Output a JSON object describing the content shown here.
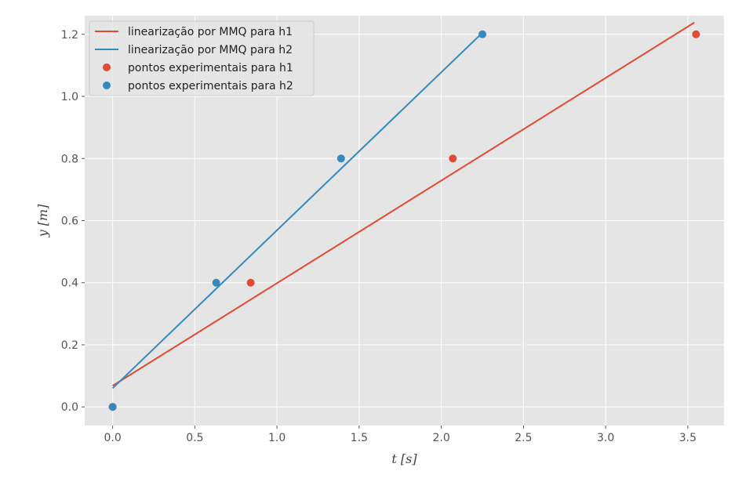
{
  "chart_data": {
    "type": "line",
    "title": "",
    "xlabel": "t [s]",
    "ylabel": "y [m]",
    "xlim": [
      -0.17,
      3.72
    ],
    "ylim": [
      -0.06,
      1.26
    ],
    "x_ticks": [
      "0.0",
      "0.5",
      "1.0",
      "1.5",
      "2.0",
      "2.5",
      "3.0",
      "3.5"
    ],
    "y_ticks": [
      "0.0",
      "0.2",
      "0.4",
      "0.6",
      "0.8",
      "1.0",
      "1.2"
    ],
    "grid": true,
    "legend_position": "top-left",
    "series": [
      {
        "name": "linearização por MMQ para h1",
        "kind": "line",
        "color": "#E24A33",
        "x": [
          0.0,
          3.54
        ],
        "y": [
          0.068,
          1.238
        ]
      },
      {
        "name": "linearização por MMQ para h2",
        "kind": "line",
        "color": "#348ABD",
        "x": [
          0.0,
          2.25
        ],
        "y": [
          0.06,
          1.205
        ]
      },
      {
        "name": "pontos experimentais para h1",
        "kind": "scatter",
        "color": "#E24A33",
        "x": [
          0.0,
          0.84,
          2.07,
          3.55
        ],
        "y": [
          0.0,
          0.4,
          0.8,
          1.2
        ]
      },
      {
        "name": "pontos experimentais para h2",
        "kind": "scatter",
        "color": "#348ABD",
        "x": [
          0.0,
          0.63,
          1.39,
          2.25
        ],
        "y": [
          0.0,
          0.4,
          0.8,
          1.2
        ]
      }
    ]
  }
}
